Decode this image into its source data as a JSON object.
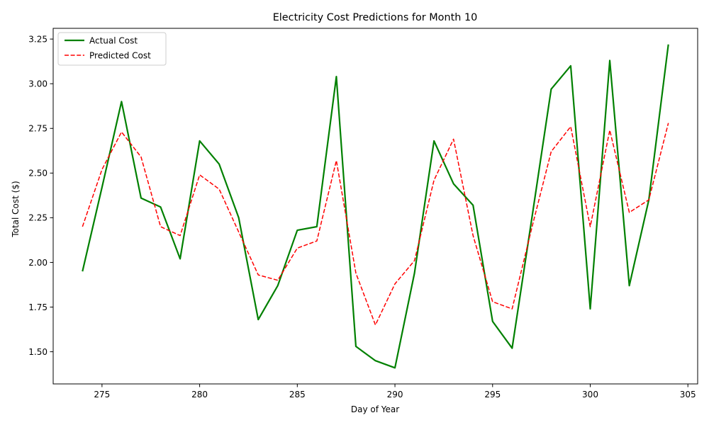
{
  "chart_data": {
    "type": "line",
    "title": "Electricity Cost Predictions for Month 10",
    "xlabel": "Day of Year",
    "ylabel": "Total Cost ($)",
    "xlim": [
      272.5,
      305.5
    ],
    "ylim": [
      1.32,
      3.31
    ],
    "x_ticks": [
      275,
      280,
      285,
      290,
      295,
      300,
      305
    ],
    "y_ticks": [
      1.5,
      1.75,
      2.0,
      2.25,
      2.5,
      2.75,
      3.0,
      3.25
    ],
    "x_tick_labels": [
      "275",
      "280",
      "285",
      "290",
      "295",
      "300",
      "305"
    ],
    "y_tick_labels": [
      "1.50",
      "1.75",
      "2.00",
      "2.25",
      "2.50",
      "2.75",
      "3.00",
      "3.25"
    ],
    "grid": false,
    "legend_position": "upper-left",
    "x": [
      274,
      275,
      276,
      277,
      278,
      279,
      280,
      281,
      282,
      283,
      284,
      285,
      286,
      287,
      288,
      289,
      290,
      291,
      292,
      293,
      294,
      295,
      296,
      297,
      298,
      299,
      300,
      301,
      302,
      303,
      304
    ],
    "series": [
      {
        "name": "Actual Cost",
        "color": "#008000",
        "style": "solid",
        "values": [
          1.95,
          2.42,
          2.9,
          2.36,
          2.31,
          2.02,
          2.68,
          2.55,
          2.25,
          1.68,
          1.87,
          2.18,
          2.2,
          3.04,
          1.53,
          1.45,
          1.41,
          1.94,
          2.68,
          2.44,
          2.32,
          1.67,
          1.52,
          2.24,
          2.97,
          3.1,
          1.74,
          3.13,
          1.87,
          2.35,
          3.22
        ]
      },
      {
        "name": "Predicted Cost",
        "color": "#ff0000",
        "style": "dashed",
        "values": [
          2.2,
          2.52,
          2.73,
          2.59,
          2.2,
          2.15,
          2.49,
          2.41,
          2.17,
          1.93,
          1.9,
          2.08,
          2.12,
          2.57,
          1.94,
          1.65,
          1.88,
          2.01,
          2.46,
          2.69,
          2.15,
          1.78,
          1.74,
          2.19,
          2.62,
          2.76,
          2.2,
          2.74,
          2.28,
          2.35,
          2.78
        ]
      }
    ]
  }
}
